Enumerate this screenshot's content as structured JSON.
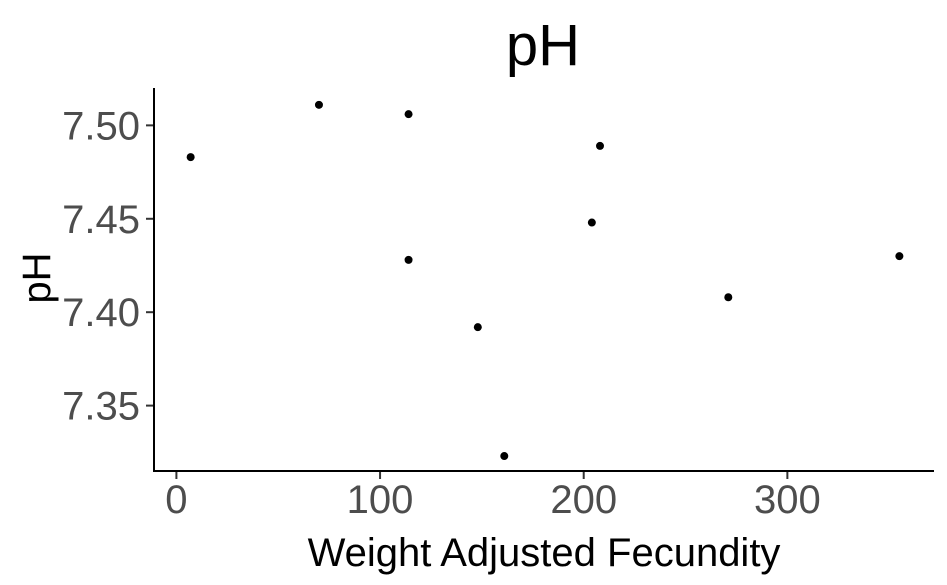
{
  "chart_data": {
    "type": "scatter",
    "title": "pH",
    "xlabel": "Weight Adjusted Fecundity",
    "ylabel": "pH",
    "xlim": [
      -11,
      372
    ],
    "ylim": [
      7.315,
      7.52
    ],
    "x_ticks": [
      0,
      100,
      200,
      300
    ],
    "x_tick_labels": [
      "0",
      "100",
      "200",
      "300"
    ],
    "y_ticks": [
      7.35,
      7.4,
      7.45,
      7.5
    ],
    "y_tick_labels": [
      "7.35",
      "7.40",
      "7.45",
      "7.50"
    ],
    "grid": false,
    "legend": "none",
    "series": [
      {
        "name": "pH",
        "color": "#000000",
        "points": [
          {
            "x": 7,
            "y": 7.483
          },
          {
            "x": 70,
            "y": 7.511
          },
          {
            "x": 114,
            "y": 7.506
          },
          {
            "x": 114,
            "y": 7.428
          },
          {
            "x": 148,
            "y": 7.392
          },
          {
            "x": 161,
            "y": 7.323
          },
          {
            "x": 204,
            "y": 7.448
          },
          {
            "x": 208,
            "y": 7.489
          },
          {
            "x": 271,
            "y": 7.408
          },
          {
            "x": 355,
            "y": 7.43
          }
        ]
      }
    ]
  }
}
